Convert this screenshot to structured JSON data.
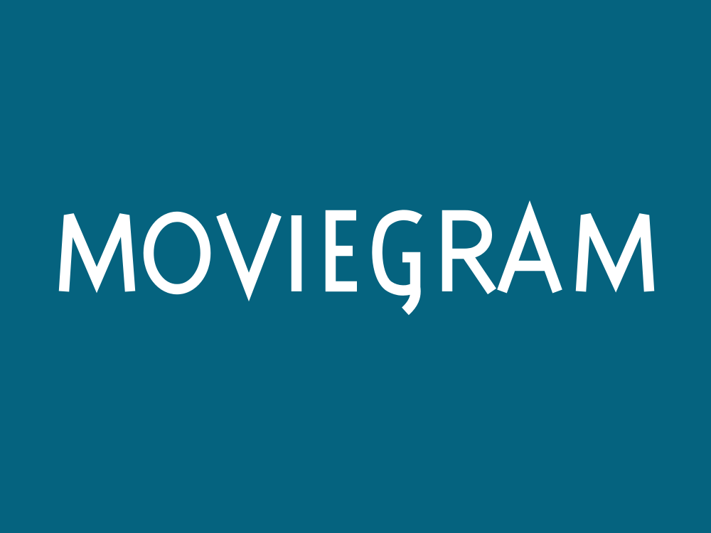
{
  "logo": {
    "wordmark": "MOVIEGRAM"
  },
  "colors": {
    "background": "#05637f",
    "text": "#ffffff"
  }
}
